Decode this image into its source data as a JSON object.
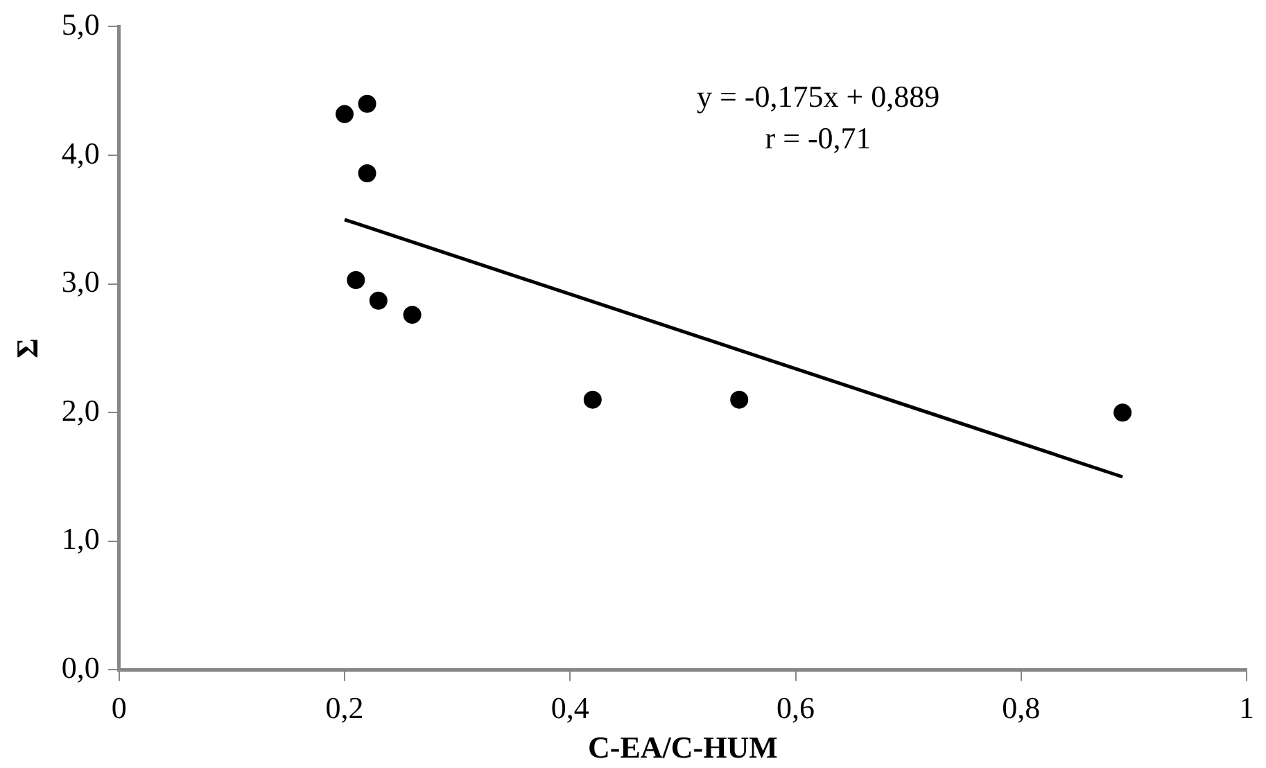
{
  "chart_data": {
    "type": "scatter",
    "xlabel": "C-EA/C-HUM",
    "ylabel": "Σ",
    "annotations": [
      "y = -0,175x + 0,889",
      "r = -0,71"
    ],
    "series": [
      {
        "color": "#000000",
        "x": [
          0.2,
          0.22,
          0.22,
          0.21,
          0.23,
          0.26,
          0.42,
          0.55,
          0.89
        ],
        "values": [
          4.32,
          4.4,
          3.86,
          3.03,
          2.87,
          2.76,
          2.1,
          2.1,
          2.0
        ]
      },
      {
        "type": "line",
        "marker": "none",
        "color": "#000000",
        "x": [
          0.2,
          0.89
        ],
        "values": [
          3.5,
          1.5
        ]
      }
    ],
    "xlim": [
      0,
      1
    ],
    "xticks": [
      {
        "value": 0,
        "label": "0"
      },
      {
        "value": 0.2,
        "label": "0,2"
      },
      {
        "value": 0.4,
        "label": "0,4"
      },
      {
        "value": 0.6,
        "label": "0,6"
      },
      {
        "value": 0.8,
        "label": "0,8"
      },
      {
        "value": 1,
        "label": "1"
      }
    ],
    "ylim": [
      0,
      5
    ],
    "yticks": [
      {
        "value": 0,
        "label": "0,0"
      },
      {
        "value": 1,
        "label": "1,0"
      },
      {
        "value": 2,
        "label": "2,0"
      },
      {
        "value": 3,
        "label": "3,0"
      },
      {
        "value": 4,
        "label": "4,0"
      },
      {
        "value": 5,
        "label": "5,0"
      }
    ],
    "grid": false,
    "legend": false,
    "marker": "circle",
    "line_style": "solid"
  }
}
